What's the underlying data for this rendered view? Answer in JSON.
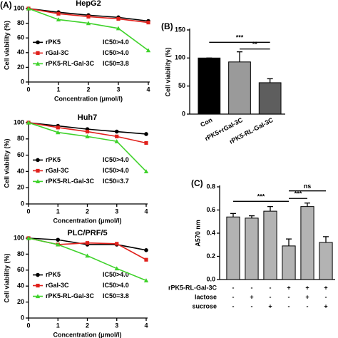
{
  "chart_data": [
    {
      "type": "line",
      "panel": "(A)",
      "title": "HepG2",
      "xlabel": "Concentration (μmol/l)",
      "ylabel": "Cell viability (%)",
      "x": [
        0,
        1,
        2,
        3,
        4
      ],
      "xlim": [
        0,
        4
      ],
      "xticks": [
        0,
        1,
        2,
        3,
        4
      ],
      "ylim": [
        0,
        100
      ],
      "yticks": [
        0,
        20,
        40,
        60,
        80,
        100
      ],
      "series": [
        {
          "name": "rPK5",
          "ic50": "IC50>4.0",
          "color": "#000000",
          "marker": "circle",
          "values": [
            100,
            95,
            91,
            88,
            83
          ]
        },
        {
          "name": "rGal-3C",
          "ic50": "IC50>4.0",
          "color": "#e0201b",
          "marker": "square",
          "values": [
            100,
            93,
            89,
            86,
            81
          ]
        },
        {
          "name": "rPK5-RL-Gal-3C",
          "ic50": "IC50=3.8",
          "color": "#3fd22b",
          "marker": "triangle",
          "values": [
            100,
            85,
            80,
            73,
            43
          ]
        }
      ]
    },
    {
      "type": "line",
      "title": "Huh7",
      "xlabel": "Concentration (μmol/l)",
      "ylabel": "Cell viability (%)",
      "x": [
        0,
        1,
        2,
        3,
        4
      ],
      "xlim": [
        0,
        4
      ],
      "xticks": [
        0,
        1,
        2,
        3,
        4
      ],
      "ylim": [
        0,
        100
      ],
      "yticks": [
        0,
        20,
        40,
        60,
        80,
        100
      ],
      "series": [
        {
          "name": "rPK5",
          "ic50": "IC50>4.0",
          "color": "#000000",
          "marker": "circle",
          "values": [
            100,
            96,
            92,
            89,
            86
          ]
        },
        {
          "name": "rGal-3C",
          "ic50": "IC50>4.0",
          "color": "#e0201b",
          "marker": "square",
          "values": [
            100,
            94,
            89,
            83,
            75
          ]
        },
        {
          "name": "rPK5-RL-Gal-3C",
          "ic50": "IC50=3.7",
          "color": "#3fd22b",
          "marker": "triangle",
          "values": [
            100,
            88,
            83,
            77,
            40
          ]
        }
      ]
    },
    {
      "type": "line",
      "title": "PLC/PRF/5",
      "xlabel": "Concentration (μmol/l)",
      "ylabel": "Cell viability (%)",
      "x": [
        0,
        1,
        2,
        3,
        4
      ],
      "xlim": [
        0,
        4
      ],
      "xticks": [
        0,
        1,
        2,
        3,
        4
      ],
      "ylim": [
        0,
        100
      ],
      "yticks": [
        0,
        20,
        40,
        60,
        80,
        100
      ],
      "series": [
        {
          "name": "rPK5",
          "ic50": "IC50>4.0",
          "color": "#000000",
          "marker": "circle",
          "values": [
            100,
            98,
            92,
            92,
            85
          ]
        },
        {
          "name": "rGal-3C",
          "ic50": "IC50>4.0",
          "color": "#e0201b",
          "marker": "square",
          "values": [
            100,
            92,
            94,
            93,
            73
          ]
        },
        {
          "name": "rPK5-RL-Gal-3C",
          "ic50": "IC50=3.8",
          "color": "#3fd22b",
          "marker": "triangle",
          "values": [
            100,
            92,
            78,
            62,
            47
          ]
        }
      ]
    },
    {
      "type": "bar",
      "panel": "(B)",
      "ylabel": "Cell viability (%)",
      "categories": [
        "Con",
        "rPK5+rGal-3C",
        "rPK5-RL-Gal-3C"
      ],
      "values": [
        100,
        93,
        56
      ],
      "errors": [
        0,
        18,
        7
      ],
      "colors": [
        "#000000",
        "#9a9a9a",
        "#5e5e5e"
      ],
      "ylim": [
        0,
        150
      ],
      "yticks": [
        0,
        50,
        100,
        150
      ],
      "significance": [
        "***",
        "**"
      ]
    },
    {
      "type": "bar",
      "panel": "(C)",
      "ylabel": "A570 nm",
      "categories": [
        null,
        null,
        null,
        null,
        null,
        null
      ],
      "values": [
        0.54,
        0.53,
        0.59,
        0.29,
        0.63,
        0.32
      ],
      "errors": [
        0.03,
        0.02,
        0.04,
        0.06,
        0.03,
        0.05
      ],
      "color": "#b3b3b3",
      "ylim": [
        0,
        0.8
      ],
      "yticks": [
        {
          "value": 0,
          "label": "0.0"
        },
        0.2,
        0.4,
        0.6,
        0.8
      ],
      "significance": [
        "***",
        "***",
        "ns"
      ],
      "table": [
        {
          "label": "rPK5-RL-Gal-3C",
          "signs": [
            "-",
            "-",
            "-",
            "+",
            "+",
            "+"
          ]
        },
        {
          "label": "lactose",
          "signs": [
            "-",
            "+",
            "-",
            "-",
            "+",
            "-"
          ]
        },
        {
          "label": "sucrose",
          "signs": [
            "-",
            "-",
            "+",
            "-",
            "-",
            "+"
          ]
        }
      ]
    }
  ]
}
